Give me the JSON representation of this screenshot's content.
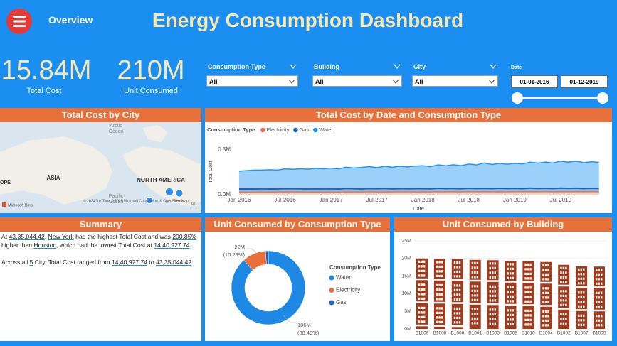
{
  "header": {
    "nav": "Overview",
    "title": "Energy Consumption Dashboard"
  },
  "kpis": [
    {
      "value": "15.84M",
      "label": "Total Cost"
    },
    {
      "value": "210M",
      "label": "Unit Consumed"
    }
  ],
  "filters": [
    {
      "label": "Consumption Type",
      "selected": "All"
    },
    {
      "label": "Building",
      "selected": "All"
    },
    {
      "label": "City",
      "selected": "All"
    }
  ],
  "date_filter": {
    "label": "Date",
    "start": "01-01-2016",
    "end": "01-12-2019"
  },
  "map": {
    "title": "Total Cost by City",
    "labels": [
      "Arctic",
      "Ocean",
      "ASIA",
      "NORTH AMERICA",
      "OPE",
      "Pacific",
      "Ocean",
      "Atl"
    ],
    "attribution": "© 2024 TomTom, © 2025 Microsoft Corporation, © OpenStreetMap",
    "terms": "Terms",
    "provider": "Microsoft Bing"
  },
  "summary": {
    "title": "Summary",
    "paragraphs": [
      [
        "At ",
        "43,35,044.42",
        ", ",
        "New York",
        " had the highest Total Cost and was ",
        "200.85%",
        " higher than ",
        "Houston",
        ", which had the lowest Total Cost at ",
        "14,40,927.74",
        "."
      ],
      [
        "Across all ",
        "5",
        " City, Total Cost ranged from ",
        "14,40,927.74",
        " to ",
        "43,35,044.42",
        "."
      ]
    ]
  },
  "chart_data": [
    {
      "type": "area",
      "title": "Total Cost by Date and Consumption Type",
      "legend_title": "Consumption Type",
      "x_label": "Date",
      "y_label": "Total Cost",
      "stacked": true,
      "x": [
        "2016-01",
        "2016-02",
        "2016-03",
        "2016-04",
        "2016-05",
        "2016-06",
        "2016-07",
        "2016-08",
        "2016-09",
        "2016-10",
        "2016-11",
        "2016-12",
        "2017-01",
        "2017-02",
        "2017-03",
        "2017-04",
        "2017-05",
        "2017-06",
        "2017-07",
        "2017-08",
        "2017-09",
        "2017-10",
        "2017-11",
        "2017-12",
        "2018-01",
        "2018-02",
        "2018-03",
        "2018-04",
        "2018-05",
        "2018-06",
        "2018-07",
        "2018-08",
        "2018-09",
        "2018-10",
        "2018-11",
        "2018-12",
        "2019-01",
        "2019-02",
        "2019-03",
        "2019-04",
        "2019-05",
        "2019-06",
        "2019-07",
        "2019-08",
        "2019-09",
        "2019-10",
        "2019-11",
        "2019-12"
      ],
      "xticks": [
        {
          "value": "2016-01",
          "label": "Jan 2016"
        },
        {
          "value": "2016-07",
          "label": "Jul 2016"
        },
        {
          "value": "2017-01",
          "label": "Jan 2017"
        },
        {
          "value": "2017-07",
          "label": "Jul 2017"
        },
        {
          "value": "2018-01",
          "label": "Jan 2018"
        },
        {
          "value": "2018-07",
          "label": "Jul 2018"
        },
        {
          "value": "2019-01",
          "label": "Jan 2019"
        },
        {
          "value": "2019-07",
          "label": "Jul 2019"
        }
      ],
      "ylim": [
        0,
        550000
      ],
      "yticks": [
        {
          "value": 0,
          "label": "0.0M"
        },
        {
          "value": 500000,
          "label": "0.5M"
        }
      ],
      "series": [
        {
          "name": "Electricity",
          "color": "#e8734a",
          "values": [
            30000,
            29000,
            31000,
            30500,
            29500,
            31500,
            30000,
            32000,
            30500,
            31000,
            29800,
            30800,
            31200,
            30200,
            32000,
            31000,
            30600,
            32400,
            31000,
            31800,
            30400,
            32200,
            31400,
            30800,
            32000,
            31000,
            33000,
            31600,
            32400,
            31200,
            33400,
            32000,
            32800,
            31600,
            33000,
            32200,
            33200,
            32400,
            34000,
            32800,
            33600,
            32200,
            34200,
            33000,
            33800,
            32600,
            33400,
            32800
          ]
        },
        {
          "name": "Gas",
          "color": "#1565c0",
          "values": [
            33000,
            35000,
            32000,
            36000,
            34000,
            33000,
            37000,
            34000,
            35000,
            33500,
            36500,
            34500,
            35000,
            33000,
            37000,
            35500,
            34000,
            36500,
            35000,
            37500,
            34500,
            36000,
            35000,
            37000,
            36000,
            34000,
            38000,
            35500,
            37000,
            35000,
            38500,
            36000,
            37500,
            35500,
            38000,
            36500,
            37000,
            35500,
            39000,
            36500,
            38000,
            36000,
            39500,
            37000,
            38500,
            36000,
            38000,
            37000
          ]
        },
        {
          "name": "Water",
          "color": "#2196f3",
          "values": [
            200000,
            205000,
            212000,
            208000,
            215000,
            210000,
            222000,
            218000,
            225000,
            220000,
            228000,
            224000,
            230000,
            226000,
            238000,
            232000,
            240000,
            245000,
            236000,
            248000,
            242000,
            250000,
            244000,
            252000,
            255000,
            248000,
            262000,
            256000,
            265000,
            258000,
            270000,
            264000,
            285000,
            270000,
            278000,
            272000,
            280000,
            276000,
            290000,
            284000,
            292000,
            286000,
            300000,
            294000,
            302000,
            290000,
            296000,
            292000
          ]
        }
      ]
    },
    {
      "type": "donut",
      "title": "Unit Consumed by Consumption Type",
      "legend_title": "Consumption Type",
      "categories": [
        "Water",
        "Electricity",
        "Gas"
      ],
      "values": [
        185830000,
        21610000,
        2560000
      ],
      "value_labels": [
        "186M",
        "22M",
        null
      ],
      "percent_labels": [
        "(88.49%)",
        "(10.29%)",
        null
      ],
      "colors": [
        "#1e88e5",
        "#e8703a",
        "#1565c0"
      ]
    },
    {
      "type": "bar",
      "title": "Unit Consumed by Building",
      "categories": [
        "B1006",
        "B1008",
        "B1000",
        "B1001",
        "B1003",
        "B1005",
        "B1010",
        "B1004",
        "B1002",
        "B1007",
        "B1009"
      ],
      "values": [
        20000000,
        19900000,
        19800000,
        19600000,
        19500000,
        19300000,
        19200000,
        19000000,
        18200000,
        17800000,
        17700000
      ],
      "color": "#a23a1c",
      "ylim": [
        0,
        25000000
      ],
      "yticks": [
        {
          "value": 0,
          "label": "0M"
        },
        {
          "value": 5000000,
          "label": "5M"
        },
        {
          "value": 10000000,
          "label": "10M"
        },
        {
          "value": 15000000,
          "label": "15M"
        },
        {
          "value": 20000000,
          "label": "20M"
        },
        {
          "value": 25000000,
          "label": "25M"
        }
      ]
    }
  ]
}
